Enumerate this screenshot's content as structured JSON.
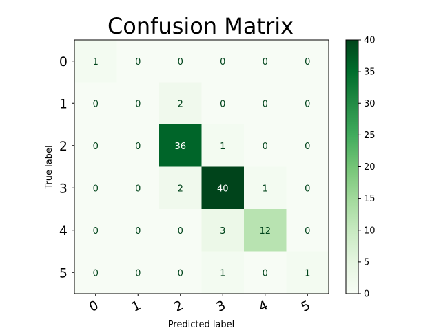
{
  "chart_data": {
    "type": "heatmap",
    "title": "Confusion Matrix",
    "xlabel": "Predicted label",
    "ylabel": "True label",
    "x_categories": [
      "0",
      "1",
      "2",
      "3",
      "4",
      "5"
    ],
    "y_categories": [
      "0",
      "1",
      "2",
      "3",
      "4",
      "5"
    ],
    "matrix": [
      [
        1,
        0,
        0,
        0,
        0,
        0
      ],
      [
        0,
        0,
        2,
        0,
        0,
        0
      ],
      [
        0,
        0,
        36,
        1,
        0,
        0
      ],
      [
        0,
        0,
        2,
        40,
        1,
        0
      ],
      [
        0,
        0,
        0,
        3,
        12,
        0
      ],
      [
        0,
        0,
        0,
        1,
        0,
        1
      ]
    ],
    "colormap": "Greens",
    "value_range": [
      0,
      40
    ],
    "colorbar_ticks": [
      "0",
      "5",
      "10",
      "15",
      "20",
      "25",
      "30",
      "35",
      "40"
    ],
    "grid": false
  }
}
